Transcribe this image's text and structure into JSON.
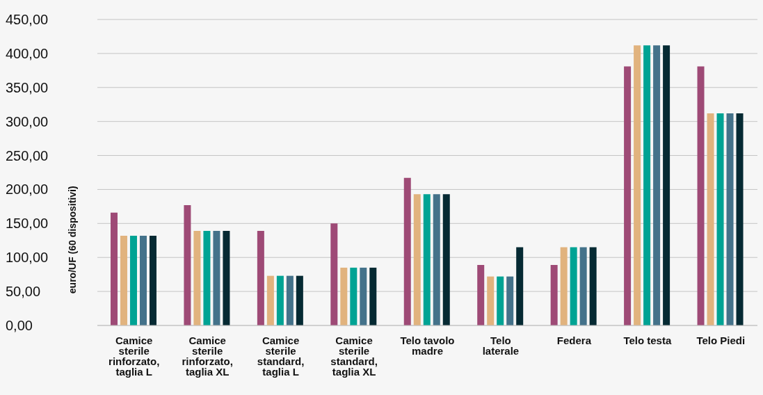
{
  "chart_data": {
    "type": "bar",
    "ylabel": "euro/UF (60 dispositivi)",
    "categories": [
      "Camice sterile rinforzato, taglia L",
      "Camice sterile rinforzato, taglia XL",
      "Camice sterile standard, taglia L",
      "Camice sterile standard, taglia XL",
      "Telo tavolo madre",
      "Telo laterale",
      "Federa",
      "Telo testa",
      "Telo Piedi"
    ],
    "series": [
      {
        "color": "#9e4a76",
        "values": [
          166,
          177,
          139,
          150,
          217,
          89,
          89,
          381,
          381
        ]
      },
      {
        "color": "#e1b37e",
        "values": [
          132,
          139,
          73,
          85,
          193,
          72,
          115,
          412,
          312
        ]
      },
      {
        "color": "#00a394",
        "values": [
          132,
          139,
          73,
          85,
          193,
          72,
          115,
          412,
          312
        ]
      },
      {
        "color": "#44728a",
        "values": [
          132,
          139,
          73,
          85,
          193,
          72,
          115,
          412,
          312
        ]
      },
      {
        "color": "#062a33",
        "values": [
          132,
          139,
          73,
          85,
          193,
          115,
          115,
          412,
          312
        ]
      }
    ],
    "ylim": [
      0,
      450
    ],
    "yticks": [
      {
        "value": 0,
        "label": "0,00"
      },
      {
        "value": 50,
        "label": "50,00"
      },
      {
        "value": 100,
        "label": "100,00"
      },
      {
        "value": 150,
        "label": "150,00"
      },
      {
        "value": 200,
        "label": "200,00"
      },
      {
        "value": 250,
        "label": "250,00"
      },
      {
        "value": 300,
        "label": "300,00"
      },
      {
        "value": 350,
        "label": "350,00"
      },
      {
        "value": 400,
        "label": "400,00"
      },
      {
        "value": 450,
        "label": "450,00"
      }
    ],
    "grid": "y",
    "legend": false
  }
}
